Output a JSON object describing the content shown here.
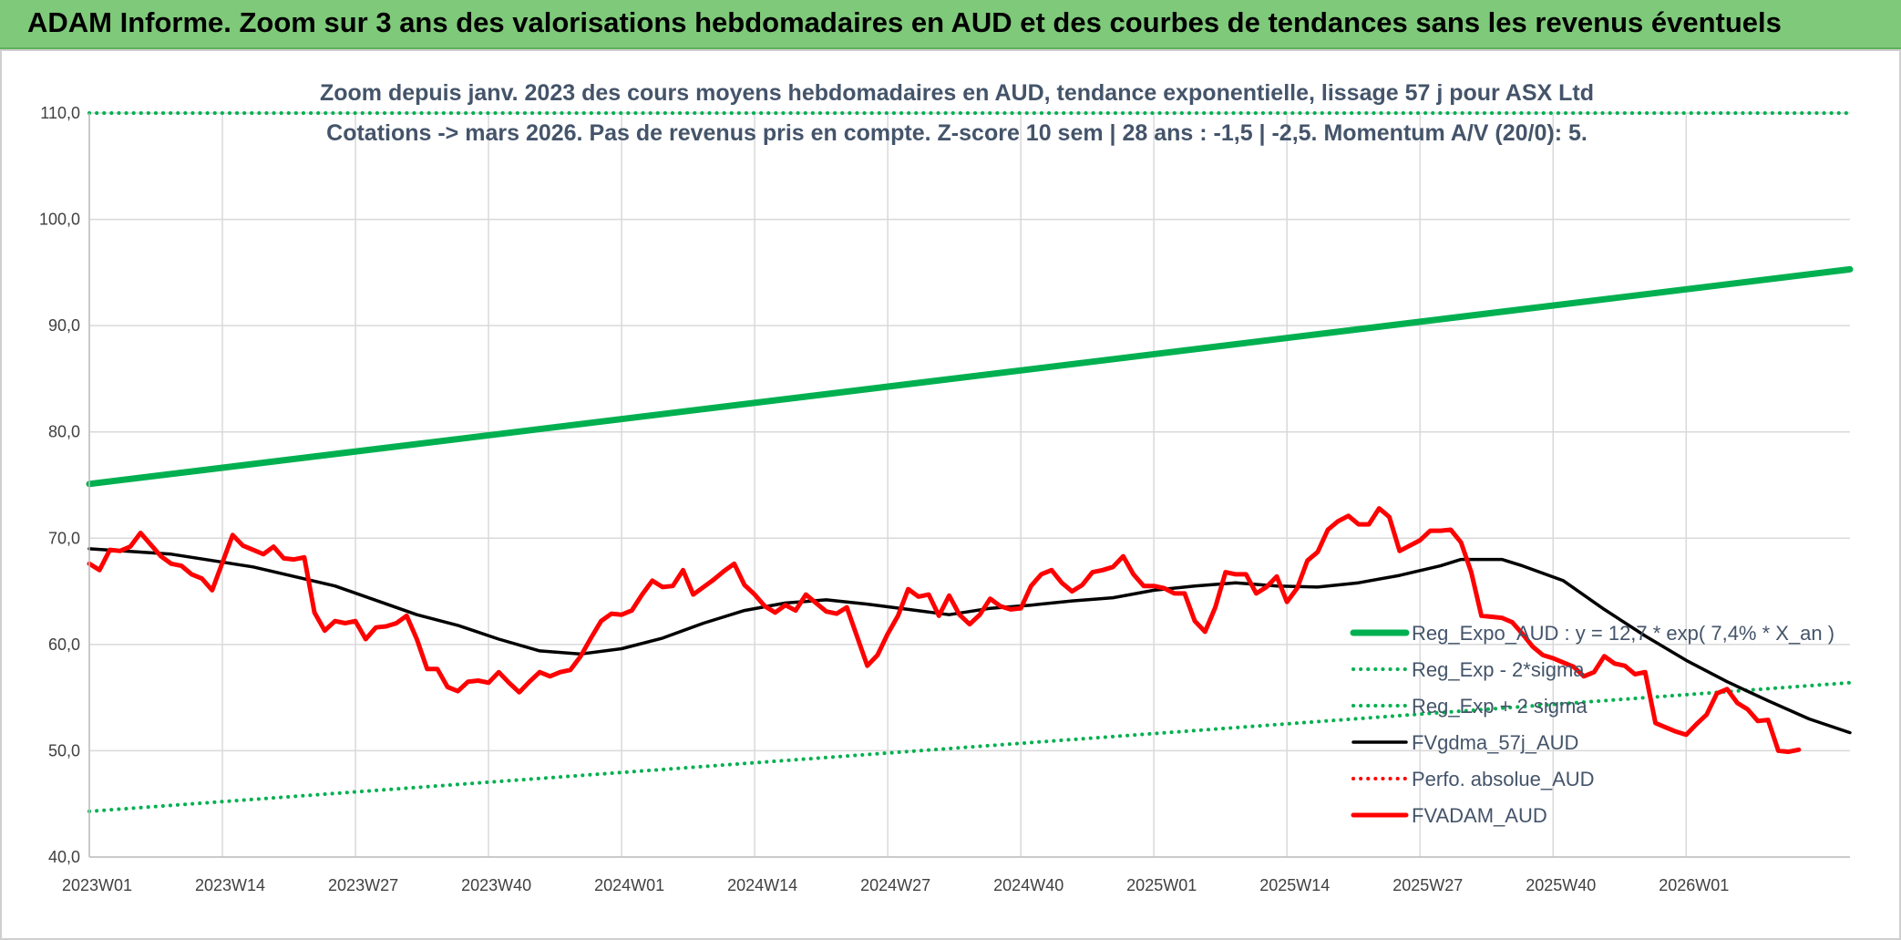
{
  "header": {
    "title": "ADAM Informe. Zoom sur 3 ans des valorisations hebdomadaires en AUD et des courbes de tendances sans les revenus éventuels"
  },
  "chart_data": {
    "type": "line",
    "title_lines": [
      "Zoom depuis janv. 2023 des cours moyens hebdomadaires en AUD, tendance exponentielle, lissage 57 j pour ASX Ltd",
      "Cotations -> mars 2026. Pas de revenus pris en compte. Z-score 10 sem | 28 ans : -1,5 | -2,5. Momentum A/V (20/0): 5."
    ],
    "ylim": [
      40,
      110
    ],
    "y_ticks": [
      "40,0",
      "50,0",
      "60,0",
      "70,0",
      "80,0",
      "90,0",
      "100,0",
      "110,0"
    ],
    "x_ticks": [
      "2023W01",
      "2023W14",
      "2023W27",
      "2023W40",
      "2024W01",
      "2024W14",
      "2024W27",
      "2024W40",
      "2025W01",
      "2025W14",
      "2025W27",
      "2025W40",
      "2026W01"
    ],
    "grid": true,
    "legend_position": "bottom-right",
    "colors": {
      "reg": "#00b050",
      "red": "#ff0000",
      "smooth": "#000000",
      "grid": "#d9d9d9"
    },
    "series": [
      {
        "name": "Reg_Expo_AUD : y = 12,7 * exp( 7,4% *  X_an )",
        "style": "solid-thick",
        "color": "#00b050",
        "points": [
          [
            0,
            75.1
          ],
          [
            172,
            95.3
          ]
        ]
      },
      {
        "name": "Reg_Exp - 2*sigma",
        "style": "dotted",
        "color": "#00b050",
        "points": [
          [
            0,
            44.3
          ],
          [
            172,
            56.4
          ]
        ]
      },
      {
        "name": "Reg_Exp + 2 sigma",
        "style": "dotted",
        "color": "#00b050",
        "points": [
          [
            0,
            110.0
          ],
          [
            172,
            110.0
          ]
        ]
      },
      {
        "name": "FVgdma_57j_AUD",
        "style": "solid",
        "color": "#000000",
        "points": [
          [
            0,
            69.0
          ],
          [
            8,
            68.5
          ],
          [
            16,
            67.3
          ],
          [
            24,
            65.5
          ],
          [
            32,
            62.8
          ],
          [
            36,
            61.8
          ],
          [
            40,
            60.5
          ],
          [
            44,
            59.4
          ],
          [
            48,
            59.1
          ],
          [
            52,
            59.6
          ],
          [
            56,
            60.6
          ],
          [
            60,
            62.0
          ],
          [
            64,
            63.2
          ],
          [
            68,
            63.9
          ],
          [
            72,
            64.2
          ],
          [
            76,
            63.8
          ],
          [
            80,
            63.3
          ],
          [
            84,
            62.8
          ],
          [
            88,
            63.4
          ],
          [
            92,
            63.7
          ],
          [
            96,
            64.1
          ],
          [
            100,
            64.4
          ],
          [
            104,
            65.1
          ],
          [
            108,
            65.5
          ],
          [
            112,
            65.8
          ],
          [
            116,
            65.5
          ],
          [
            120,
            65.4
          ],
          [
            124,
            65.8
          ],
          [
            128,
            66.5
          ],
          [
            132,
            67.4
          ],
          [
            134,
            68.0
          ],
          [
            138,
            68.0
          ],
          [
            140,
            67.4
          ],
          [
            144,
            66.0
          ],
          [
            148,
            63.3
          ],
          [
            152,
            60.8
          ],
          [
            156,
            58.5
          ],
          [
            160,
            56.5
          ],
          [
            164,
            54.7
          ],
          [
            168,
            53.0
          ],
          [
            172,
            51.7
          ]
        ]
      },
      {
        "name": "Perfo. absolue_AUD",
        "style": "dotted",
        "color": "#ff0000",
        "points": []
      },
      {
        "name": "FVADAM_AUD",
        "style": "solid-thick",
        "color": "#ff0000",
        "points": [
          [
            0,
            67.6
          ],
          [
            1,
            67.0
          ],
          [
            2,
            68.9
          ],
          [
            3,
            68.8
          ],
          [
            4,
            69.2
          ],
          [
            5,
            70.5
          ],
          [
            6,
            69.4
          ],
          [
            7,
            68.3
          ],
          [
            8,
            67.6
          ],
          [
            9,
            67.4
          ],
          [
            10,
            66.6
          ],
          [
            11,
            66.2
          ],
          [
            12,
            65.1
          ],
          [
            14,
            70.3
          ],
          [
            15,
            69.3
          ],
          [
            16,
            68.9
          ],
          [
            17,
            68.5
          ],
          [
            18,
            69.2
          ],
          [
            19,
            68.1
          ],
          [
            20,
            68.0
          ],
          [
            21,
            68.2
          ],
          [
            22,
            63.0
          ],
          [
            23,
            61.3
          ],
          [
            24,
            62.2
          ],
          [
            25,
            62.0
          ],
          [
            26,
            62.2
          ],
          [
            27,
            60.5
          ],
          [
            28,
            61.6
          ],
          [
            29,
            61.7
          ],
          [
            30,
            62.0
          ],
          [
            31,
            62.7
          ],
          [
            32,
            60.5
          ],
          [
            33,
            57.7
          ],
          [
            34,
            57.7
          ],
          [
            35,
            56.0
          ],
          [
            36,
            55.6
          ],
          [
            37,
            56.5
          ],
          [
            38,
            56.6
          ],
          [
            39,
            56.4
          ],
          [
            40,
            57.4
          ],
          [
            41,
            56.4
          ],
          [
            42,
            55.5
          ],
          [
            43,
            56.5
          ],
          [
            44,
            57.4
          ],
          [
            45,
            57.0
          ],
          [
            46,
            57.4
          ],
          [
            47,
            57.6
          ],
          [
            48,
            58.9
          ],
          [
            49,
            60.6
          ],
          [
            50,
            62.2
          ],
          [
            51,
            62.9
          ],
          [
            52,
            62.8
          ],
          [
            53,
            63.2
          ],
          [
            54,
            64.7
          ],
          [
            55,
            66.0
          ],
          [
            56,
            65.4
          ],
          [
            57,
            65.5
          ],
          [
            58,
            67.0
          ],
          [
            59,
            64.7
          ],
          [
            60,
            65.4
          ],
          [
            61,
            66.1
          ],
          [
            62,
            66.9
          ],
          [
            63,
            67.6
          ],
          [
            64,
            65.6
          ],
          [
            65,
            64.7
          ],
          [
            66,
            63.6
          ],
          [
            67,
            63.0
          ],
          [
            68,
            63.7
          ],
          [
            69,
            63.2
          ],
          [
            70,
            64.7
          ],
          [
            71,
            63.9
          ],
          [
            72,
            63.1
          ],
          [
            73,
            62.9
          ],
          [
            74,
            63.5
          ],
          [
            76,
            58.0
          ],
          [
            77,
            59.0
          ],
          [
            78,
            61.0
          ],
          [
            79,
            62.7
          ],
          [
            80,
            65.2
          ],
          [
            81,
            64.5
          ],
          [
            82,
            64.7
          ],
          [
            83,
            62.7
          ],
          [
            84,
            64.6
          ],
          [
            85,
            62.8
          ],
          [
            86,
            61.9
          ],
          [
            87,
            62.8
          ],
          [
            88,
            64.3
          ],
          [
            89,
            63.6
          ],
          [
            90,
            63.3
          ],
          [
            91,
            63.4
          ],
          [
            92,
            65.5
          ],
          [
            93,
            66.6
          ],
          [
            94,
            67.0
          ],
          [
            95,
            65.8
          ],
          [
            96,
            65.0
          ],
          [
            97,
            65.6
          ],
          [
            98,
            66.8
          ],
          [
            99,
            67.0
          ],
          [
            100,
            67.3
          ],
          [
            101,
            68.3
          ],
          [
            102,
            66.6
          ],
          [
            103,
            65.5
          ],
          [
            104,
            65.5
          ],
          [
            105,
            65.3
          ],
          [
            106,
            64.8
          ],
          [
            107,
            64.8
          ],
          [
            108,
            62.2
          ],
          [
            109,
            61.2
          ],
          [
            110,
            63.5
          ],
          [
            111,
            66.8
          ],
          [
            112,
            66.6
          ],
          [
            113,
            66.6
          ],
          [
            114,
            64.8
          ],
          [
            115,
            65.4
          ],
          [
            116,
            66.4
          ],
          [
            117,
            64.0
          ],
          [
            118,
            65.3
          ],
          [
            119,
            67.9
          ],
          [
            120,
            68.7
          ],
          [
            121,
            70.8
          ],
          [
            122,
            71.6
          ],
          [
            123,
            72.1
          ],
          [
            124,
            71.3
          ],
          [
            125,
            71.3
          ],
          [
            126,
            72.8
          ],
          [
            127,
            72.0
          ],
          [
            128,
            68.8
          ],
          [
            129,
            69.3
          ],
          [
            130,
            69.8
          ],
          [
            131,
            70.7
          ],
          [
            132,
            70.7
          ],
          [
            133,
            70.8
          ],
          [
            134,
            69.6
          ],
          [
            135,
            66.8
          ],
          [
            136,
            62.7
          ],
          [
            137,
            62.6
          ],
          [
            138,
            62.5
          ],
          [
            139,
            62.1
          ],
          [
            140,
            61.0
          ],
          [
            141,
            59.8
          ],
          [
            142,
            59.0
          ],
          [
            143,
            58.7
          ],
          [
            144,
            58.3
          ],
          [
            145,
            57.9
          ],
          [
            146,
            57.0
          ],
          [
            147,
            57.4
          ],
          [
            148,
            58.9
          ],
          [
            149,
            58.2
          ],
          [
            150,
            58.0
          ],
          [
            151,
            57.2
          ],
          [
            152,
            57.4
          ],
          [
            153,
            52.6
          ],
          [
            154,
            52.2
          ],
          [
            155,
            51.8
          ],
          [
            156,
            51.5
          ],
          [
            157,
            52.5
          ],
          [
            158,
            53.4
          ],
          [
            159,
            55.4
          ],
          [
            160,
            55.8
          ],
          [
            161,
            54.5
          ],
          [
            162,
            53.9
          ],
          [
            163,
            52.8
          ],
          [
            164,
            52.9
          ],
          [
            165,
            50.0
          ],
          [
            166,
            49.9
          ],
          [
            167,
            50.1
          ]
        ]
      }
    ]
  }
}
